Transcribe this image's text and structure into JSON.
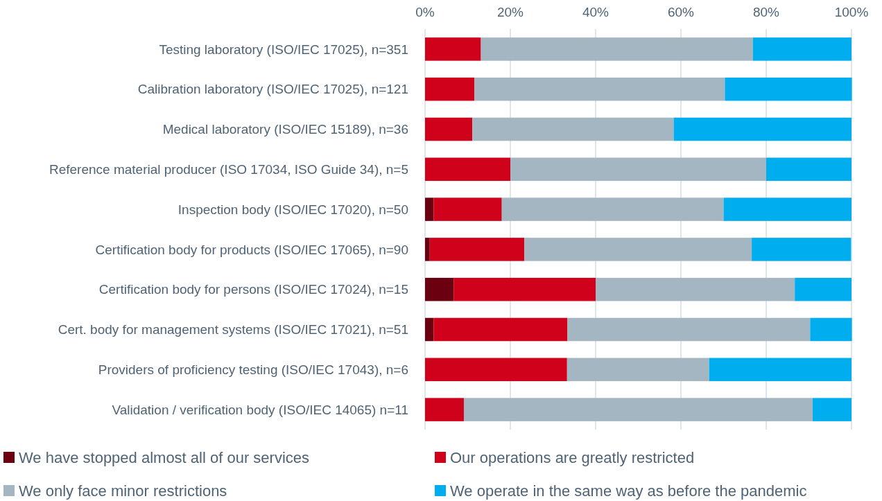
{
  "chart_data": {
    "type": "bar",
    "orientation": "horizontal",
    "stacked": true,
    "categories": [
      "Testing laboratory (ISO/IEC 17025), n=351",
      "Calibration laboratory (ISO/IEC 17025), n=121",
      "Medical laboratory (ISO/IEC 15189), n=36",
      "Reference material producer (ISO 17034, ISO Guide 34), n=5",
      "Inspection body (ISO/IEC 17020), n=50",
      "Certification body for products (ISO/IEC 17065), n=90",
      "Certification body for persons (ISO/IEC 17024), n=15",
      "Cert. body for management systems (ISO/IEC 17021), n=51",
      "Providers of proficiency testing (ISO/IEC 17043), n=6",
      "Validation / verification body (ISO/IEC 14065) n=11"
    ],
    "series": [
      {
        "name": "We have stopped almost all of our services",
        "color": "#6b0010",
        "values": [
          0,
          0,
          0,
          0,
          2,
          1.1,
          6.7,
          2,
          0,
          0
        ]
      },
      {
        "name": "Our operations are greatly restricted",
        "color": "#d0021b",
        "values": [
          13.1,
          11.6,
          11.1,
          20,
          16,
          22.2,
          33.3,
          31.4,
          33.3,
          9.1
        ]
      },
      {
        "name": "We only face minor restrictions",
        "color": "#a4b6c2",
        "values": [
          63.8,
          58.7,
          47.2,
          60,
          52,
          53.3,
          46.7,
          56.9,
          33.3,
          81.8
        ]
      },
      {
        "name": "We operate in the same way as before the pandemic",
        "color": "#00aeef",
        "values": [
          23.1,
          29.8,
          41.7,
          20,
          30,
          23.3,
          13.3,
          9.8,
          33.4,
          9.1
        ]
      }
    ],
    "xlim": [
      0,
      100
    ],
    "xticks": [
      {
        "value": 0,
        "label": "0%"
      },
      {
        "value": 20,
        "label": "20%"
      },
      {
        "value": 40,
        "label": "40%"
      },
      {
        "value": 60,
        "label": "60%"
      },
      {
        "value": 80,
        "label": "80%"
      },
      {
        "value": 100,
        "label": "100%"
      }
    ],
    "grid": "x",
    "legend": "bottom"
  }
}
